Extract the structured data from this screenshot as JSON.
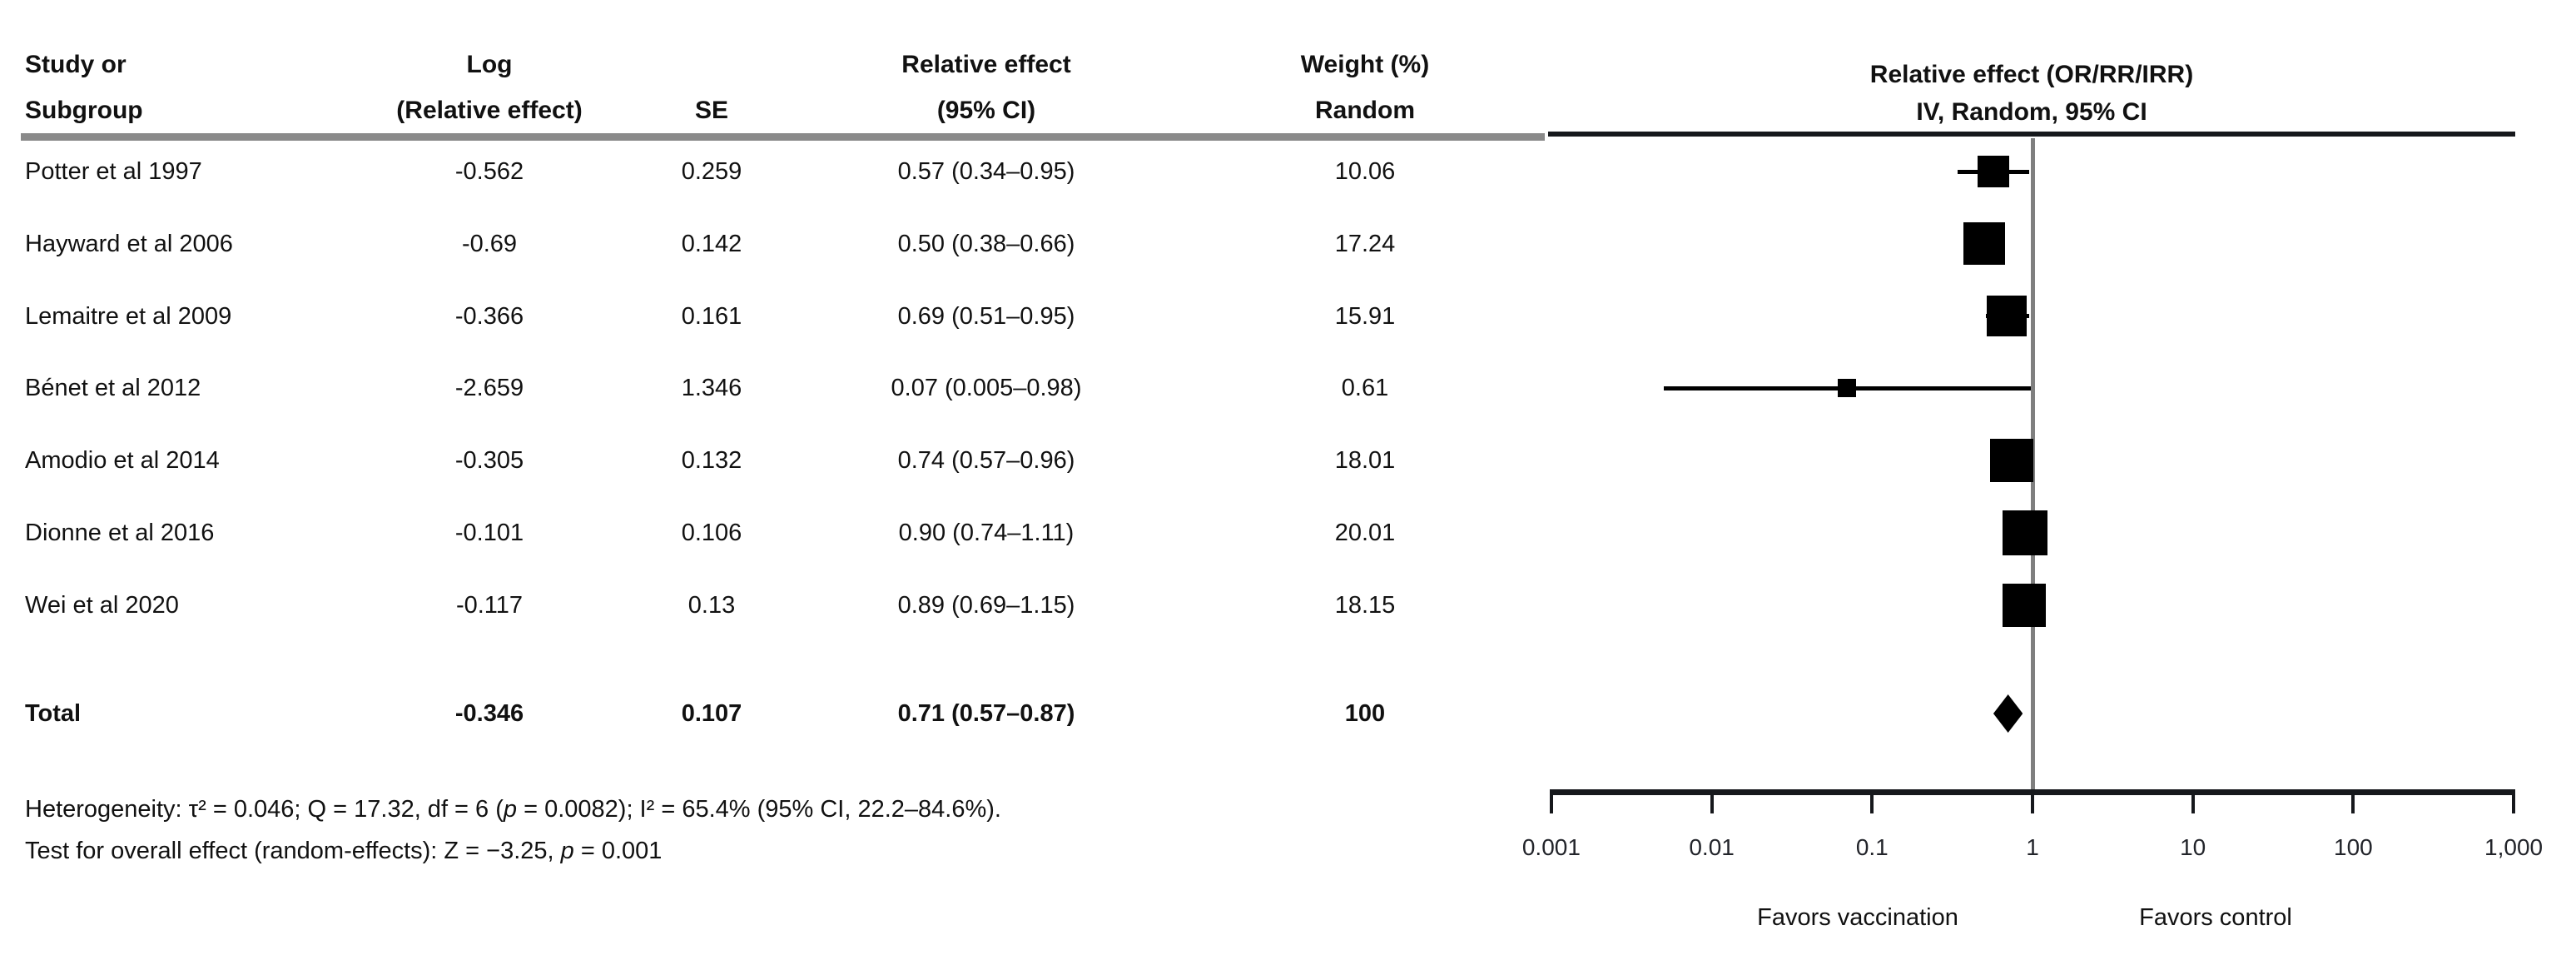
{
  "table": {
    "columns": [
      {
        "line1": "Study or",
        "line2": "Subgroup"
      },
      {
        "line1": "Log",
        "line2": "(Relative effect)"
      },
      {
        "line1": "",
        "line2": "SE"
      },
      {
        "line1": "Relative effect",
        "line2": "(95% CI)"
      },
      {
        "line1": "Weight (%)",
        "line2": "Random"
      }
    ]
  },
  "plot": {
    "title": "Relative effect (OR/RR/IRR)",
    "subtitle": "IV, Random, 95% CI",
    "favors_left": "Favors vaccination",
    "favors_right": "Favors control"
  },
  "footnotes": {
    "heterogeneity": [
      {
        "text": "Heterogeneity: τ² = 0.046; Q = 17.32, df = 6 (",
        "italic": false
      },
      {
        "text": "p",
        "italic": true
      },
      {
        "text": " = 0.0082); I² = 65.4% (95% CI, 22.2–84.6%).",
        "italic": false
      }
    ],
    "overall_effect": [
      {
        "text": "Test for overall effect (random-effects): Z = −3.25, ",
        "italic": false
      },
      {
        "text": "p",
        "italic": true
      },
      {
        "text": " = 0.001",
        "italic": false
      }
    ]
  },
  "chart_data": {
    "type": "scatter",
    "subtype": "forest-plot-meta-analysis",
    "title": "Relative effect (OR/RR/IRR)",
    "subtitle": "IV, Random, 95% CI",
    "x_scale": "log10",
    "xlim": [
      0.001,
      1000
    ],
    "x_ticks": [
      0.001,
      0.01,
      0.1,
      1,
      10,
      100,
      1000
    ],
    "x_tick_labels": [
      "0.001",
      "0.01",
      "0.1",
      "1",
      "10",
      "100",
      "1,000"
    ],
    "reference_line": 1,
    "annotations_below_axis": [
      "Favors vaccination",
      "Favors control"
    ],
    "studies": [
      {
        "label": "Potter et al 1997",
        "log_relative_effect": "-0.562",
        "se": "0.259",
        "ci_text": "0.57 (0.34–0.95)",
        "weight_text": "10.06",
        "effect": 0.57,
        "ci_low": 0.34,
        "ci_high": 0.95,
        "weight": 10.06
      },
      {
        "label": "Hayward et al 2006",
        "log_relative_effect": "-0.69",
        "se": "0.142",
        "ci_text": "0.50 (0.38–0.66)",
        "weight_text": "17.24",
        "effect": 0.5,
        "ci_low": 0.38,
        "ci_high": 0.66,
        "weight": 17.24
      },
      {
        "label": "Lemaitre et al 2009",
        "log_relative_effect": "-0.366",
        "se": "0.161",
        "ci_text": "0.69 (0.51–0.95)",
        "weight_text": "15.91",
        "effect": 0.69,
        "ci_low": 0.51,
        "ci_high": 0.95,
        "weight": 15.91
      },
      {
        "label": "Bénet et al 2012",
        "log_relative_effect": "-2.659",
        "se": "1.346",
        "ci_text": "0.07 (0.005–0.98)",
        "weight_text": "0.61",
        "effect": 0.07,
        "ci_low": 0.005,
        "ci_high": 0.98,
        "weight": 0.61
      },
      {
        "label": "Amodio et al 2014",
        "log_relative_effect": "-0.305",
        "se": "0.132",
        "ci_text": "0.74 (0.57–0.96)",
        "weight_text": "18.01",
        "effect": 0.74,
        "ci_low": 0.57,
        "ci_high": 0.96,
        "weight": 18.01
      },
      {
        "label": "Dionne et al 2016",
        "log_relative_effect": "-0.101",
        "se": "0.106",
        "ci_text": "0.90 (0.74–1.11)",
        "weight_text": "20.01",
        "effect": 0.9,
        "ci_low": 0.74,
        "ci_high": 1.11,
        "weight": 20.01
      },
      {
        "label": "Wei et al 2020",
        "log_relative_effect": "-0.117",
        "se": "0.13",
        "ci_text": "0.89 (0.69–1.15)",
        "weight_text": "18.15",
        "effect": 0.89,
        "ci_low": 0.69,
        "ci_high": 1.15,
        "weight": 18.15
      }
    ],
    "total": {
      "label": "Total",
      "log_relative_effect": "-0.346",
      "se": "0.107",
      "ci_text": "0.71 (0.57–0.87)",
      "weight_text": "100",
      "effect": 0.71,
      "ci_low": 0.57,
      "ci_high": 0.87
    }
  },
  "colors": {
    "marker": "#000000",
    "reference_line": "#7f7f7f",
    "axis": "#16181c",
    "table_rule": "#8a8a8a",
    "text": "#111111"
  }
}
